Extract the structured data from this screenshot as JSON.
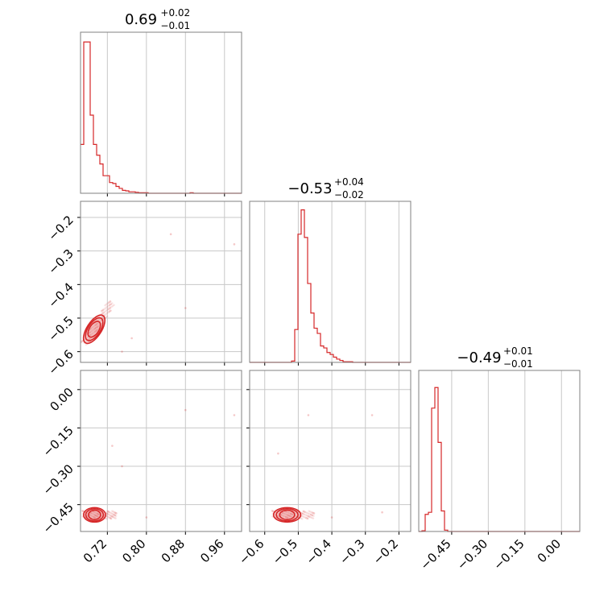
{
  "chart_data": {
    "type": "corner",
    "color": "#d62728",
    "grid": true,
    "panels": {
      "hist_1": {
        "title": {
          "main": "0.69",
          "plus": "+0.02",
          "minus": "−0.01"
        },
        "xlim": [
          0.665,
          0.995
        ],
        "xticks": [
          0.72,
          0.8,
          0.88,
          0.96
        ],
        "bin_width": 0.0066,
        "counts": [
          100,
          310,
          310,
          160,
          100,
          78,
          60,
          36,
          36,
          22,
          20,
          14,
          10,
          6,
          5,
          3,
          3,
          2,
          1,
          1,
          1,
          0,
          0,
          0,
          0,
          0,
          0,
          0,
          0,
          0,
          0,
          0,
          0,
          0,
          1,
          0,
          0,
          0,
          0,
          0,
          0,
          0,
          0,
          0,
          0,
          0,
          0,
          0,
          0,
          0
        ],
        "ymax": 330
      },
      "hist_2": {
        "title": {
          "main": "−0.53",
          "plus": "+0.04",
          "minus": "−0.02"
        },
        "xlim": [
          -0.645,
          -0.165
        ],
        "xticks": [
          -0.6,
          -0.5,
          -0.4,
          -0.3,
          -0.2
        ],
        "bin_width": 0.0096,
        "counts": [
          0,
          0,
          0,
          0,
          0,
          0,
          0,
          0,
          0,
          0,
          0,
          0,
          0,
          2,
          50,
          195,
          232,
          190,
          120,
          75,
          52,
          44,
          25,
          22,
          15,
          12,
          8,
          5,
          3,
          1,
          1,
          1,
          0,
          0,
          0,
          0,
          0,
          0,
          0,
          0,
          0,
          0,
          0,
          0,
          0,
          0,
          0,
          0,
          0,
          0
        ],
        "ymax": 245
      },
      "hist_3": {
        "title": {
          "main": "−0.49",
          "plus": "+0.01",
          "minus": "−0.01"
        },
        "xlim": [
          -0.585,
          0.075
        ],
        "xticks": [
          -0.45,
          -0.3,
          -0.15,
          0.0
        ],
        "bin_width": 0.0132,
        "counts": [
          0,
          1,
          25,
          28,
          180,
          210,
          130,
          30,
          2,
          0,
          0,
          0,
          0,
          0,
          0,
          0,
          0,
          0,
          0,
          0,
          0,
          0,
          0,
          0,
          0,
          0,
          0,
          0,
          0,
          0,
          0,
          0,
          0,
          0,
          0,
          0,
          0,
          0,
          0,
          0,
          0,
          0,
          0,
          0,
          0,
          0,
          0,
          0,
          0,
          0
        ],
        "ymax": 235
      },
      "scatter_2_1": {
        "xlim": [
          0.665,
          0.995
        ],
        "ylim": [
          -0.632,
          -0.152
        ],
        "yticks": [
          -0.2,
          -0.3,
          -0.4,
          -0.5,
          -0.6
        ],
        "center": [
          0.69,
          -0.54
        ],
        "main_axis": [
          0.02,
          0.045
        ],
        "outliers": [
          [
            0.85,
            -0.25
          ],
          [
            0.98,
            -0.28
          ],
          [
            0.88,
            -0.47
          ],
          [
            0.77,
            -0.56
          ],
          [
            0.75,
            -0.6
          ]
        ]
      },
      "scatter_3_1": {
        "xlim": [
          0.665,
          0.995
        ],
        "ylim": [
          -0.555,
          0.075
        ],
        "yticks": [
          0.0,
          -0.15,
          -0.3,
          -0.45
        ],
        "center": [
          0.69,
          -0.49
        ],
        "main_axis": [
          0.025,
          0.0
        ],
        "outliers": [
          [
            0.88,
            -0.08
          ],
          [
            0.98,
            -0.1
          ],
          [
            0.73,
            -0.22
          ],
          [
            0.75,
            -0.3
          ],
          [
            0.8,
            -0.5
          ]
        ]
      },
      "scatter_3_2": {
        "xlim": [
          -0.645,
          -0.165
        ],
        "ylim": [
          -0.555,
          0.075
        ],
        "center": [
          -0.54,
          -0.49
        ],
        "main_axis": [
          0.045,
          0.0
        ],
        "outliers": [
          [
            -0.47,
            -0.1
          ],
          [
            -0.28,
            -0.1
          ],
          [
            -0.56,
            -0.25
          ],
          [
            -0.25,
            -0.48
          ],
          [
            -0.4,
            -0.5
          ]
        ]
      }
    },
    "tick_labels": {
      "x_col1": [
        "0.72",
        "0.80",
        "0.88",
        "0.96"
      ],
      "x_col2": [
        "−0.6",
        "−0.5",
        "−0.4",
        "−0.3",
        "−0.2"
      ],
      "x_col3": [
        "−0.45",
        "−0.30",
        "−0.15",
        "0.00"
      ],
      "y_row2": [
        "−0.2",
        "−0.3",
        "−0.4",
        "−0.5",
        "−0.6"
      ],
      "y_row3": [
        "0.00",
        "−0.15",
        "−0.30",
        "−0.45"
      ]
    }
  }
}
